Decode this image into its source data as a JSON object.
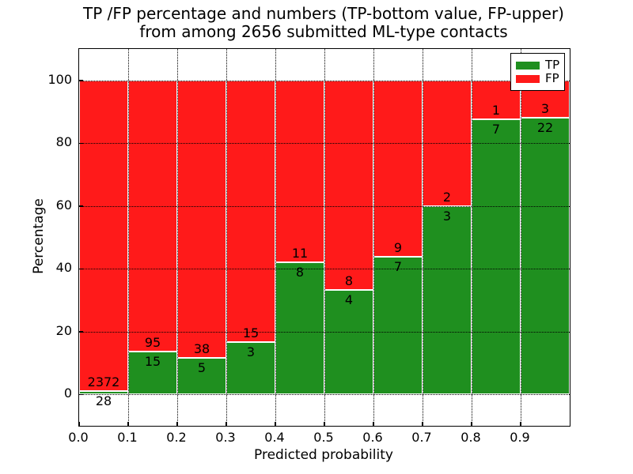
{
  "chart_data": {
    "type": "bar",
    "subtype": "stacked-percentage",
    "title": "TP /FP percentage and numbers (TP-bottom value, FP-upper)",
    "subtitle": "from among 2656 submitted ML-type contacts",
    "xlabel": "Predicted probability",
    "ylabel": "Percentage",
    "total_contacts": 2656,
    "grid": true,
    "legend_position": "upper right",
    "legend": [
      {
        "name": "TP",
        "color": "#1f8f1f"
      },
      {
        "name": "FP",
        "color": "#ff1a1a"
      }
    ],
    "colors": {
      "tp": "#1f8f1f",
      "fp": "#ff1a1a",
      "bar_edge": "#ffffff"
    },
    "xlim": [
      0.0,
      1.0
    ],
    "ylim": [
      -10,
      110
    ],
    "xticks": {
      "pos": [
        0.0,
        0.1,
        0.2,
        0.3,
        0.4,
        0.5,
        0.6,
        0.7,
        0.8,
        0.9
      ],
      "labels": [
        "0.0",
        "0.1",
        "0.2",
        "0.3",
        "0.4",
        "0.5",
        "0.6",
        "0.7",
        "0.8",
        "0.9"
      ]
    },
    "yticks": {
      "pos": [
        0,
        20,
        40,
        60,
        80,
        100
      ],
      "labels": [
        "0",
        "20",
        "40",
        "60",
        "80",
        "100"
      ]
    },
    "bins": [
      {
        "range": "0.0-0.1",
        "tp": 28,
        "fp": 2372,
        "tp_percent": 1.17,
        "fp_percent": 98.83
      },
      {
        "range": "0.1-0.2",
        "tp": 15,
        "fp": 95,
        "tp_percent": 13.64,
        "fp_percent": 86.36
      },
      {
        "range": "0.2-0.3",
        "tp": 5,
        "fp": 38,
        "tp_percent": 11.63,
        "fp_percent": 88.37
      },
      {
        "range": "0.3-0.4",
        "tp": 3,
        "fp": 15,
        "tp_percent": 16.67,
        "fp_percent": 83.33
      },
      {
        "range": "0.4-0.5",
        "tp": 8,
        "fp": 11,
        "tp_percent": 42.11,
        "fp_percent": 57.89
      },
      {
        "range": "0.5-0.6",
        "tp": 4,
        "fp": 8,
        "tp_percent": 33.33,
        "fp_percent": 66.67
      },
      {
        "range": "0.6-0.7",
        "tp": 7,
        "fp": 9,
        "tp_percent": 43.75,
        "fp_percent": 56.25
      },
      {
        "range": "0.7-0.8",
        "tp": 3,
        "fp": 2,
        "tp_percent": 60.0,
        "fp_percent": 40.0
      },
      {
        "range": "0.8-0.9",
        "tp": 7,
        "fp": 1,
        "tp_percent": 87.5,
        "fp_percent": 12.5
      },
      {
        "range": "0.9-1.0",
        "tp": 22,
        "fp": 3,
        "tp_percent": 88.0,
        "fp_percent": 12.0
      }
    ]
  }
}
